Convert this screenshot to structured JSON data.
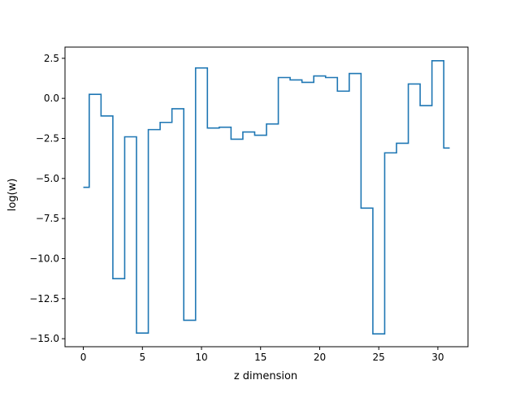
{
  "chart_data": {
    "type": "line",
    "drawstyle": "steps-mid",
    "title": "",
    "xlabel": "z dimension",
    "ylabel": "log(w)",
    "xlim": [
      -1.55,
      32.55
    ],
    "ylim": [
      -15.5,
      3.2
    ],
    "x_ticks": [
      0,
      5,
      10,
      15,
      20,
      25,
      30
    ],
    "x_tick_labels": [
      "0",
      "5",
      "10",
      "15",
      "20",
      "25",
      "30"
    ],
    "y_ticks": [
      2.5,
      0.0,
      -2.5,
      -5.0,
      -7.5,
      -10.0,
      -12.5,
      -15.0
    ],
    "y_tick_labels": [
      "2.5",
      "0.0",
      "−2.5",
      "−5.0",
      "−7.5",
      "−10.0",
      "−12.5",
      "−15.0"
    ],
    "grid": false,
    "legend": "none",
    "colors": {
      "series": "#1f77b4",
      "axes": "#000000",
      "background": "#ffffff"
    },
    "series": [
      {
        "x": [
          0,
          1,
          2,
          3,
          4,
          5,
          6,
          7,
          8,
          9,
          10,
          11,
          12,
          13,
          14,
          15,
          16,
          17,
          18,
          19,
          20,
          21,
          22,
          23,
          24,
          25,
          26,
          27,
          28,
          29,
          30,
          31
        ],
        "values": [
          -5.55,
          0.25,
          -1.1,
          -11.25,
          -2.4,
          -14.65,
          -1.95,
          -1.5,
          -0.65,
          -13.85,
          1.9,
          -1.85,
          -1.8,
          -2.55,
          -2.1,
          -2.3,
          -1.6,
          1.3,
          1.15,
          1.0,
          1.4,
          1.3,
          0.45,
          1.55,
          -6.85,
          -14.7,
          -3.4,
          -2.8,
          0.9,
          -0.45,
          2.35,
          -3.1
        ]
      }
    ]
  }
}
